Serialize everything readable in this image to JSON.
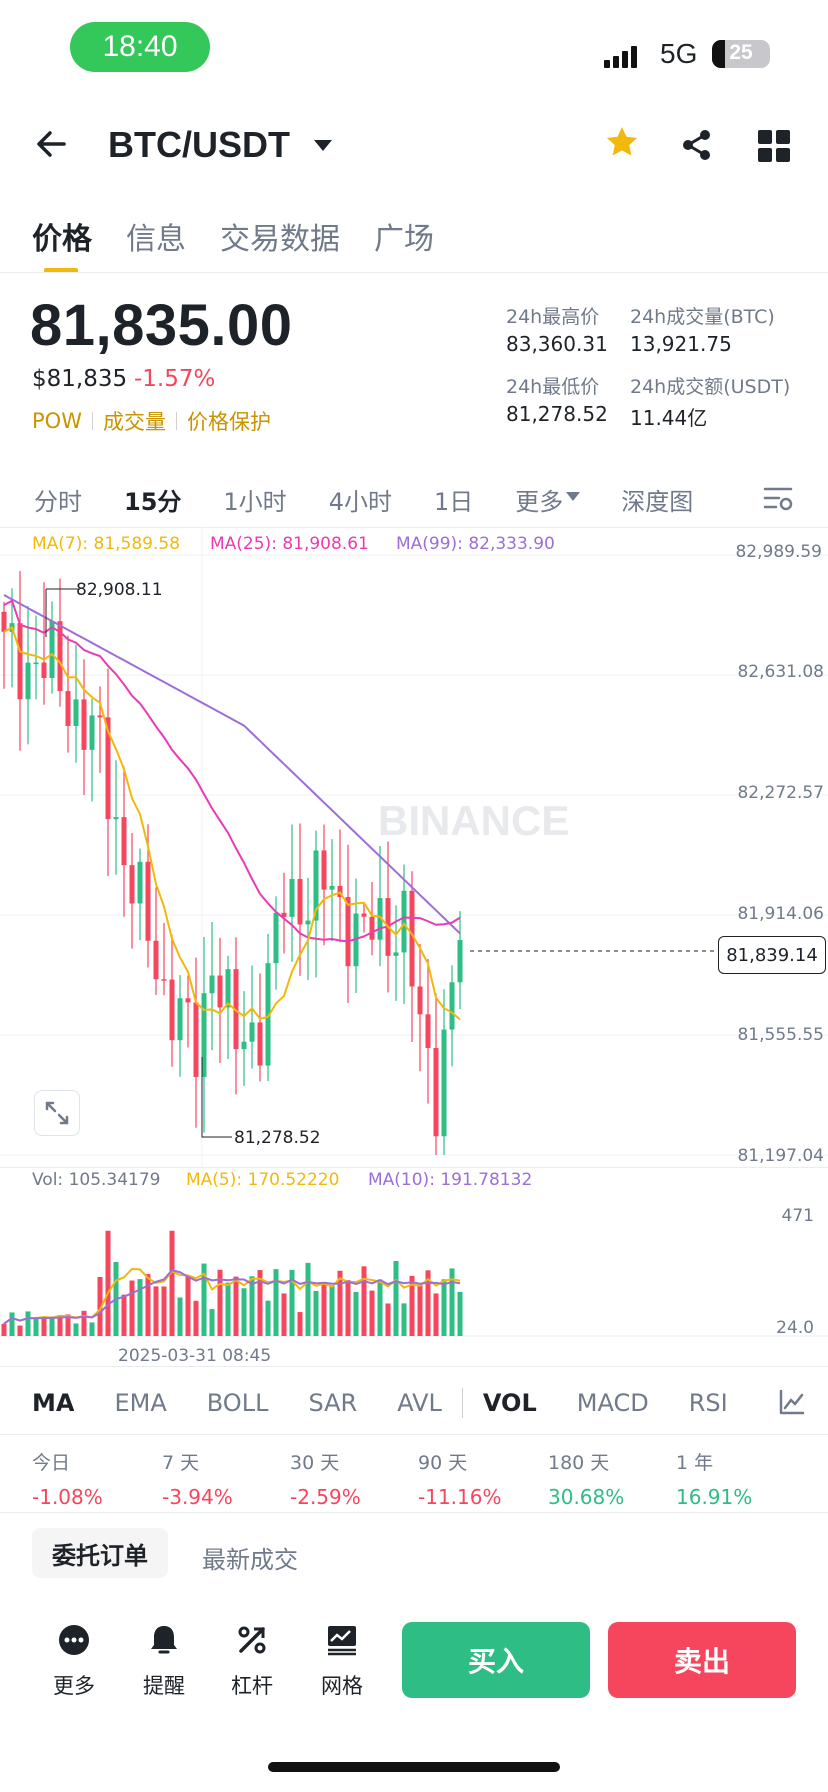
{
  "status_bar": {
    "time": "18:40",
    "network": "5G",
    "battery": "25"
  },
  "header": {
    "back_icon": "arrow-left-icon",
    "pair": "BTC/USDT",
    "icons": [
      "star-icon",
      "share-icon",
      "grid-icon"
    ]
  },
  "tabs": [
    {
      "label": "价格",
      "active": true
    },
    {
      "label": "信息",
      "active": false
    },
    {
      "label": "交易数据",
      "active": false
    },
    {
      "label": "广场",
      "active": false
    }
  ],
  "ticker": {
    "price": "81,835.00",
    "usd_price": "$81,835",
    "change": "-1.57%",
    "tags": [
      "POW",
      "成交量",
      "价格保护"
    ],
    "stats": [
      {
        "label": "24h最高价",
        "value": "83,360.31"
      },
      {
        "label": "24h成交量(BTC)",
        "value": "13,921.75"
      },
      {
        "label": "24h最低价",
        "value": "81,278.52"
      },
      {
        "label": "24h成交额(USDT)",
        "value": "11.44亿"
      }
    ]
  },
  "intervals": [
    {
      "label": "分时",
      "active": false
    },
    {
      "label": "15分",
      "active": true
    },
    {
      "label": "1小时",
      "active": false
    },
    {
      "label": "4小时",
      "active": false
    },
    {
      "label": "1日",
      "active": false
    },
    {
      "label": "更多",
      "active": false
    },
    {
      "label": "深度图",
      "active": false
    }
  ],
  "chart": {
    "ma_legend": [
      {
        "text": "MA(7): 81,589.58",
        "color": "#f0b90b"
      },
      {
        "text": "MA(25): 81,908.61",
        "color": "#e93bb5"
      },
      {
        "text": "MA(99): 82,333.90",
        "color": "#9c6ed6"
      }
    ],
    "price_axis": [
      "82,989.59",
      "82,631.08",
      "82,272.57",
      "81,914.06",
      "81,555.55",
      "81,197.04"
    ],
    "high_marker": "82,908.11",
    "low_marker": "81,278.52",
    "current_price": "81,839.14",
    "watermark": "BINANCE",
    "vol_legend": [
      {
        "text": "Vol: 105.34179",
        "color": "#707a8a"
      },
      {
        "text": "MA(5): 170.52220",
        "color": "#f0b90b"
      },
      {
        "text": "MA(10): 191.78132",
        "color": "#9c6ed6"
      }
    ],
    "vol_axis": [
      "471",
      "24.0"
    ],
    "time_label": "2025-03-31 08:45",
    "colors": {
      "up": "#2ebd85",
      "down": "#f6465d",
      "ma7": "#f0b90b",
      "ma25": "#e93bb5",
      "ma99": "#9c6ed6"
    }
  },
  "chart_data": {
    "type": "candlestick",
    "ylim": [
      81197.04,
      82989.59
    ],
    "interval": "15分",
    "high": 82908.11,
    "low": 81278.52,
    "last": 81839.14
  },
  "indicators": [
    {
      "label": "MA",
      "active": true
    },
    {
      "label": "EMA",
      "active": false
    },
    {
      "label": "BOLL",
      "active": false
    },
    {
      "label": "SAR",
      "active": false
    },
    {
      "label": "AVL",
      "active": false
    },
    {
      "label": "VOL",
      "active": true
    },
    {
      "label": "MACD",
      "active": false
    },
    {
      "label": "RSI",
      "active": false
    }
  ],
  "performance": [
    {
      "label": "今日",
      "value": "-1.08%",
      "positive": false
    },
    {
      "label": "7 天",
      "value": "-3.94%",
      "positive": false
    },
    {
      "label": "30 天",
      "value": "-2.59%",
      "positive": false
    },
    {
      "label": "90 天",
      "value": "-11.16%",
      "positive": false
    },
    {
      "label": "180 天",
      "value": "30.68%",
      "positive": true
    },
    {
      "label": "1 年",
      "value": "16.91%",
      "positive": true
    }
  ],
  "orders_tabs": [
    "委托订单",
    "最新成交"
  ],
  "bottom_bar": [
    {
      "label": "更多",
      "icon": "more-icon"
    },
    {
      "label": "提醒",
      "icon": "bell-icon"
    },
    {
      "label": "杠杆",
      "icon": "leverage-icon"
    },
    {
      "label": "网格",
      "icon": "grid-trading-icon"
    }
  ],
  "buy_label": "买入",
  "sell_label": "卖出"
}
